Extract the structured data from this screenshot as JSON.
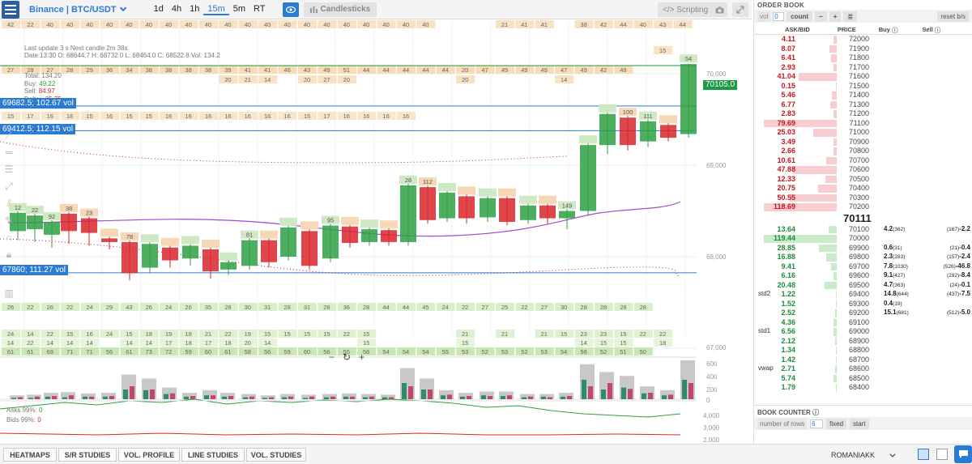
{
  "toolbar": {
    "exchange": "Binance | BTC/USDT",
    "timeframes": [
      "1d",
      "4h",
      "1h",
      "15m",
      "5m",
      "RT"
    ],
    "active_timeframe": "15m",
    "candlesticks_label": "Candlesticks",
    "scripting_label": "Scripting"
  },
  "chart_info": {
    "update_line": "Last update 3  s   Next candle 2m 38s",
    "ohlc_line": "Date:13:30 O: 68644.7 H: 68732.0 L: 68464.0 C: 68522.8 Vol: 134.2",
    "total_label": "Total:",
    "total_value": "134.20",
    "buy_label": "Buy:",
    "buy_value": "49.22",
    "sell_label": "Sell:",
    "sell_value": "84.97",
    "delta_label": "Delta:",
    "delta_value": "-35.75"
  },
  "levels": [
    {
      "label": "69682.5; 102.67 vol"
    },
    {
      "label": "69412.5; 112.15 vol"
    },
    {
      "label": "67860; 111.27 vol"
    }
  ],
  "current_price": "70105.0",
  "y_axis": [
    "70,000",
    "69,000",
    "68,000",
    "67,000"
  ],
  "volume_axis": [
    "600",
    "400",
    "200",
    "0"
  ],
  "oscillator_axis": [
    "4,000",
    "3,000",
    "2,000"
  ],
  "asks_label": "Asks 99%:",
  "asks_value": "0",
  "bids_label": "Bids 99%:",
  "bids_value": "0",
  "colors": {
    "accent": "#2b7bd3",
    "buy": "#2e9b2e",
    "sell": "#d4262e",
    "price_tag": "#1d9a45"
  },
  "footprint_rows": {
    "row1": [
      "42",
      "22",
      "40",
      "40",
      "40",
      "40",
      "40",
      "40",
      "40",
      "40",
      "40",
      "40",
      "40",
      "40",
      "40",
      "40",
      "40",
      "40",
      "40",
      "40",
      "40",
      "40",
      "",
      "",
      "",
      "21",
      "41",
      "41",
      "",
      "38",
      "42",
      "44",
      "40",
      "43",
      "44"
    ],
    "row1b": [
      "",
      "",
      "",
      "",
      "",
      "",
      "",
      "",
      "",
      "",
      "",
      "",
      "",
      "",
      "",
      "",
      "",
      "",
      "",
      "",
      "",
      "",
      "",
      "",
      "",
      "",
      "",
      "",
      "",
      "",
      "",
      "",
      "",
      "15",
      ""
    ],
    "row2": [
      "27",
      "28",
      "27",
      "28",
      "29",
      "36",
      "34",
      "38",
      "38",
      "38",
      "38",
      "39",
      "41",
      "41",
      "46",
      "43",
      "49",
      "51",
      "44",
      "44",
      "44",
      "44",
      "44",
      "20",
      "47",
      "49",
      "49",
      "49",
      "47",
      "49",
      "42",
      "49",
      ""
    ],
    "row3": [
      "",
      "",
      "",
      "",
      "",
      "",
      "",
      "",
      "",
      "",
      "",
      "20",
      "21",
      "14",
      "",
      "20",
      "27",
      "20",
      "",
      "",
      "",
      "",
      "",
      "20",
      "",
      "",
      "",
      "",
      "14",
      "",
      "",
      "",
      ""
    ],
    "row4": [
      "15",
      "17",
      "16",
      "16",
      "15",
      "16",
      "15",
      "15",
      "16",
      "16",
      "16",
      "16",
      "16",
      "16",
      "16",
      "15",
      "17",
      "16",
      "16",
      "16",
      "16",
      "",
      "",
      "",
      "",
      "",
      "",
      "",
      "",
      "",
      "",
      ""
    ],
    "bottom1": [
      "26",
      "22",
      "26",
      "22",
      "24",
      "29",
      "43",
      "26",
      "24",
      "26",
      "35",
      "28",
      "30",
      "31",
      "28",
      "31",
      "28",
      "36",
      "28",
      "44",
      "44",
      "45",
      "24",
      "22",
      "27",
      "25",
      "22",
      "27",
      "30",
      "28",
      "28",
      "28",
      "28"
    ],
    "bottom2": [
      "24",
      "14",
      "22",
      "15",
      "16",
      "24",
      "15",
      "18",
      "19",
      "18",
      "21",
      "22",
      "19",
      "15",
      "15",
      "15",
      "15",
      "22",
      "15",
      "",
      "",
      "",
      "",
      "21",
      "",
      "21",
      "",
      "21",
      "15",
      "23",
      "23",
      "15",
      "22",
      "22"
    ],
    "bottom3": [
      "14",
      "22",
      "14",
      "14",
      "14",
      "",
      "14",
      "14",
      "17",
      "18",
      "17",
      "18",
      "20",
      "14",
      "",
      "",
      "",
      "",
      "15",
      "",
      "",
      "",
      "",
      "15",
      "",
      "",
      "",
      "",
      "",
      "14",
      "15",
      "15",
      "",
      "18"
    ],
    "bottom4": [
      "61",
      "61",
      "69",
      "71",
      "71",
      "56",
      "61",
      "73",
      "72",
      "59",
      "60",
      "61",
      "58",
      "56",
      "59",
      "60",
      "56",
      "55",
      "56",
      "54",
      "54",
      "54",
      "55",
      "53",
      "52",
      "53",
      "52",
      "53",
      "54",
      "56",
      "52",
      "51",
      "50"
    ]
  },
  "candles": [
    {
      "x": 12,
      "o": 68280,
      "c": 68480,
      "h": 68560,
      "l": 68180,
      "lab": "12"
    },
    {
      "x": 33,
      "o": 68300,
      "c": 68450,
      "h": 68520,
      "l": 68160,
      "lab": "22"
    },
    {
      "x": 54,
      "o": 68240,
      "c": 68380,
      "h": 68480,
      "l": 68100,
      "lab": "92"
    },
    {
      "x": 75,
      "o": 68470,
      "c": 68280,
      "h": 68560,
      "l": 68140,
      "lab": "38"
    },
    {
      "x": 100,
      "o": 68420,
      "c": 68260,
      "h": 68480,
      "l": 68120,
      "lab": "23"
    },
    {
      "x": 125,
      "o": 68200,
      "c": 68160,
      "h": 68280,
      "l": 68080,
      "lab": ""
    },
    {
      "x": 150,
      "o": 68160,
      "c": 67820,
      "h": 68240,
      "l": 67740,
      "lab": "78"
    },
    {
      "x": 175,
      "o": 67880,
      "c": 68140,
      "h": 68220,
      "l": 67820,
      "lab": ""
    },
    {
      "x": 200,
      "o": 68100,
      "c": 67960,
      "h": 68160,
      "l": 67880,
      "lab": ""
    },
    {
      "x": 225,
      "o": 67980,
      "c": 68120,
      "h": 68200,
      "l": 67900,
      "lab": ""
    },
    {
      "x": 250,
      "o": 68080,
      "c": 67840,
      "h": 68120,
      "l": 67760,
      "lab": ""
    },
    {
      "x": 272,
      "o": 67860,
      "c": 67940,
      "h": 68000,
      "l": 67800,
      "lab": ""
    },
    {
      "x": 298,
      "o": 67900,
      "c": 68180,
      "h": 68240,
      "l": 67860,
      "lab": "81"
    },
    {
      "x": 322,
      "o": 68180,
      "c": 67940,
      "h": 68220,
      "l": 67880,
      "lab": ""
    },
    {
      "x": 346,
      "o": 68000,
      "c": 68320,
      "h": 68380,
      "l": 67960,
      "lab": ""
    },
    {
      "x": 372,
      "o": 68280,
      "c": 67900,
      "h": 68380,
      "l": 67860,
      "lab": ""
    },
    {
      "x": 398,
      "o": 67980,
      "c": 68340,
      "h": 68400,
      "l": 67940,
      "lab": "95"
    },
    {
      "x": 422,
      "o": 68330,
      "c": 68150,
      "h": 68380,
      "l": 68100,
      "lab": ""
    },
    {
      "x": 446,
      "o": 68160,
      "c": 68300,
      "h": 68360,
      "l": 68120,
      "lab": ""
    },
    {
      "x": 470,
      "o": 68290,
      "c": 68160,
      "h": 68360,
      "l": 68120,
      "lab": ""
    },
    {
      "x": 494,
      "o": 68160,
      "c": 68780,
      "h": 68820,
      "l": 68120,
      "lab": "28"
    },
    {
      "x": 518,
      "o": 68760,
      "c": 68400,
      "h": 68820,
      "l": 68360,
      "lab": "112"
    },
    {
      "x": 542,
      "o": 68420,
      "c": 68700,
      "h": 68760,
      "l": 68380,
      "lab": ""
    },
    {
      "x": 566,
      "o": 68660,
      "c": 68420,
      "h": 68700,
      "l": 68360,
      "lab": ""
    },
    {
      "x": 592,
      "o": 68430,
      "c": 68640,
      "h": 68690,
      "l": 68380,
      "lab": ""
    },
    {
      "x": 616,
      "o": 68640,
      "c": 68380,
      "h": 68680,
      "l": 68340,
      "lab": ""
    },
    {
      "x": 642,
      "o": 68400,
      "c": 68560,
      "h": 68620,
      "l": 68360,
      "lab": ""
    },
    {
      "x": 666,
      "o": 68560,
      "c": 68420,
      "h": 68600,
      "l": 68360,
      "lab": ""
    },
    {
      "x": 690,
      "o": 68420,
      "c": 68500,
      "h": 68560,
      "l": 68300,
      "lab": "149"
    },
    {
      "x": 716,
      "o": 68500,
      "c": 69220,
      "h": 69260,
      "l": 68460,
      "lab": ""
    },
    {
      "x": 740,
      "o": 69220,
      "c": 69560,
      "h": 69620,
      "l": 69120,
      "lab": ""
    },
    {
      "x": 765,
      "o": 69520,
      "c": 69220,
      "h": 69560,
      "l": 69160,
      "lab": "100"
    },
    {
      "x": 790,
      "o": 69260,
      "c": 69480,
      "h": 69520,
      "l": 69200,
      "lab": "111"
    },
    {
      "x": 815,
      "o": 69440,
      "c": 69300,
      "h": 69480,
      "l": 69260,
      "lab": ""
    },
    {
      "x": 840,
      "o": 69340,
      "c": 70105,
      "h": 70110,
      "l": 69300,
      "lab": "54"
    }
  ],
  "volumes": [
    {
      "x": 12,
      "b": 20,
      "s": 30,
      "g": 60
    },
    {
      "x": 33,
      "b": 20,
      "s": 40,
      "g": 70
    },
    {
      "x": 54,
      "b": 40,
      "s": 50,
      "g": 100
    },
    {
      "x": 75,
      "b": 30,
      "s": 60,
      "g": 110
    },
    {
      "x": 100,
      "b": 40,
      "s": 40,
      "g": 90
    },
    {
      "x": 125,
      "b": 40,
      "s": 50,
      "g": 100
    },
    {
      "x": 150,
      "b": 150,
      "s": 200,
      "g": 380
    },
    {
      "x": 175,
      "b": 140,
      "s": 150,
      "g": 320
    },
    {
      "x": 200,
      "b": 80,
      "s": 90,
      "g": 180
    },
    {
      "x": 225,
      "b": 40,
      "s": 50,
      "g": 100
    },
    {
      "x": 250,
      "b": 60,
      "s": 60,
      "g": 140
    },
    {
      "x": 272,
      "b": 40,
      "s": 50,
      "g": 100
    },
    {
      "x": 298,
      "b": 30,
      "s": 40,
      "g": 80
    },
    {
      "x": 322,
      "b": 20,
      "s": 30,
      "g": 60
    },
    {
      "x": 346,
      "b": 30,
      "s": 40,
      "g": 80
    },
    {
      "x": 372,
      "b": 20,
      "s": 40,
      "g": 70
    },
    {
      "x": 398,
      "b": 30,
      "s": 40,
      "g": 80
    },
    {
      "x": 422,
      "b": 40,
      "s": 40,
      "g": 90
    },
    {
      "x": 446,
      "b": 30,
      "s": 40,
      "g": 80
    },
    {
      "x": 470,
      "b": 30,
      "s": 30,
      "g": 70
    },
    {
      "x": 494,
      "b": 250,
      "s": 200,
      "g": 480
    },
    {
      "x": 518,
      "b": 150,
      "s": 150,
      "g": 320
    },
    {
      "x": 542,
      "b": 60,
      "s": 70,
      "g": 140
    },
    {
      "x": 566,
      "b": 40,
      "s": 50,
      "g": 100
    },
    {
      "x": 592,
      "b": 60,
      "s": 50,
      "g": 120
    },
    {
      "x": 616,
      "b": 50,
      "s": 60,
      "g": 120
    },
    {
      "x": 642,
      "b": 30,
      "s": 40,
      "g": 80
    },
    {
      "x": 666,
      "b": 40,
      "s": 30,
      "g": 80
    },
    {
      "x": 690,
      "b": 40,
      "s": 50,
      "g": 100
    },
    {
      "x": 716,
      "b": 300,
      "s": 200,
      "g": 540
    },
    {
      "x": 740,
      "b": 150,
      "s": 250,
      "g": 420
    },
    {
      "x": 765,
      "b": 180,
      "s": 160,
      "g": 360
    },
    {
      "x": 790,
      "b": 90,
      "s": 100,
      "g": 200
    },
    {
      "x": 815,
      "b": 60,
      "s": 70,
      "g": 140
    },
    {
      "x": 840,
      "b": 300,
      "s": 250,
      "g": 600
    }
  ],
  "order_book": {
    "title": "ORDER BOOK",
    "vol_label": "vol",
    "vol_value": "0",
    "count_label": "count",
    "reset_label": "reset b/s",
    "headers": {
      "askbid": "ASK/BID",
      "price": "PRICE",
      "buy": "Buy",
      "sell": "Sell"
    },
    "mid_price": "70111",
    "asks": [
      {
        "size": "4.11",
        "price": "72000",
        "w": 5
      },
      {
        "size": "8.07",
        "price": "71900",
        "w": 10
      },
      {
        "size": "6.41",
        "price": "71800",
        "w": 8
      },
      {
        "size": "2.93",
        "price": "71700",
        "w": 4
      },
      {
        "size": "41.04",
        "price": "71600",
        "w": 52
      },
      {
        "size": "0.15",
        "price": "71500",
        "w": 1
      },
      {
        "size": "5.46",
        "price": "71400",
        "w": 7
      },
      {
        "size": "6.77",
        "price": "71300",
        "w": 9
      },
      {
        "size": "2.83",
        "price": "71200",
        "w": 4
      },
      {
        "size": "79.69",
        "price": "71100",
        "w": 100
      },
      {
        "size": "25.03",
        "price": "71000",
        "w": 32
      },
      {
        "size": "3.49",
        "price": "70900",
        "w": 5
      },
      {
        "size": "2.66",
        "price": "70800",
        "w": 4
      },
      {
        "size": "10.61",
        "price": "70700",
        "w": 14
      },
      {
        "size": "47.88",
        "price": "70600",
        "w": 60
      },
      {
        "size": "12.33",
        "price": "70500",
        "w": 16
      },
      {
        "size": "20.75",
        "price": "70400",
        "w": 26
      },
      {
        "size": "50.55",
        "price": "70300",
        "w": 64
      },
      {
        "size": "118.69",
        "price": "70200",
        "w": 100
      }
    ],
    "bids": [
      {
        "size": "13.64",
        "price": "70100",
        "w": 11,
        "buy": "4.2",
        "buyc": "(362)",
        "sell": "(167)",
        "sellv": "-2.2",
        "lbl": ""
      },
      {
        "size": "119.44",
        "price": "70000",
        "w": 100,
        "buy": "",
        "buyc": "",
        "sell": "",
        "sellv": "",
        "lbl": ""
      },
      {
        "size": "28.85",
        "price": "69900",
        "w": 24,
        "buy": "0.6",
        "buyc": "(31)",
        "sell": "(21)",
        "sellv": "-0.4",
        "lbl": ""
      },
      {
        "size": "16.88",
        "price": "69800",
        "w": 14,
        "buy": "2.3",
        "buyc": "(283)",
        "sell": "(157)",
        "sellv": "-2.4",
        "lbl": ""
      },
      {
        "size": "9.41",
        "price": "69700",
        "w": 8,
        "buy": "7.8",
        "buyc": "(1030)",
        "sell": "(526)",
        "sellv": "-46.8",
        "lbl": ""
      },
      {
        "size": "6.16",
        "price": "69600",
        "w": 5,
        "buy": "9.1",
        "buyc": "(427)",
        "sell": "(292)",
        "sellv": "-8.4",
        "lbl": ""
      },
      {
        "size": "20.48",
        "price": "69500",
        "w": 17,
        "buy": "4.7",
        "buyc": "(363)",
        "sell": "(24)",
        "sellv": "-0.1",
        "lbl": ""
      },
      {
        "size": "1.22",
        "price": "69400",
        "w": 1,
        "buy": "14.8",
        "buyc": "(644)",
        "sell": "(437)",
        "sellv": "-7.5",
        "lbl": "std2"
      },
      {
        "size": "1.52",
        "price": "69300",
        "w": 1,
        "buy": "0.4",
        "buyc": "(19)",
        "sell": "",
        "sellv": "",
        "lbl": ""
      },
      {
        "size": "2.52",
        "price": "69200",
        "w": 2,
        "buy": "15.1",
        "buyc": "(681)",
        "sell": "(512)",
        "sellv": "-5.0",
        "lbl": ""
      },
      {
        "size": "4.36",
        "price": "69100",
        "w": 4,
        "buy": "",
        "buyc": "",
        "sell": "",
        "sellv": "",
        "lbl": ""
      },
      {
        "size": "6.56",
        "price": "69000",
        "w": 5,
        "buy": "",
        "buyc": "",
        "sell": "",
        "sellv": "",
        "lbl": "std1"
      },
      {
        "size": "2.12",
        "price": "68900",
        "w": 2,
        "buy": "",
        "buyc": "",
        "sell": "",
        "sellv": "",
        "lbl": ""
      },
      {
        "size": "1.34",
        "price": "68800",
        "w": 1,
        "buy": "",
        "buyc": "",
        "sell": "",
        "sellv": "",
        "lbl": ""
      },
      {
        "size": "1.42",
        "price": "68700",
        "w": 1,
        "buy": "",
        "buyc": "",
        "sell": "",
        "sellv": "",
        "lbl": ""
      },
      {
        "size": "2.71",
        "price": "68600",
        "w": 2,
        "buy": "",
        "buyc": "",
        "sell": "",
        "sellv": "",
        "lbl": "vwap"
      },
      {
        "size": "5.74",
        "price": "68500",
        "w": 5,
        "buy": "",
        "buyc": "",
        "sell": "",
        "sellv": "",
        "lbl": ""
      },
      {
        "size": "1.79",
        "price": "68400",
        "w": 1,
        "buy": "",
        "buyc": "",
        "sell": "",
        "sellv": "",
        "lbl": ""
      }
    ],
    "book_counter_title": "BOOK COUNTER",
    "rows_label": "number of rows",
    "rows_value": "6",
    "fixed_label": "fixed",
    "start_label": "start"
  },
  "bottom_tabs": [
    "HEATMAPS",
    "S/R STUDIES",
    "VOL. PROFILE",
    "LINE STUDIES",
    "VOL. STUDIES"
  ],
  "user": "ROMANIAKK"
}
